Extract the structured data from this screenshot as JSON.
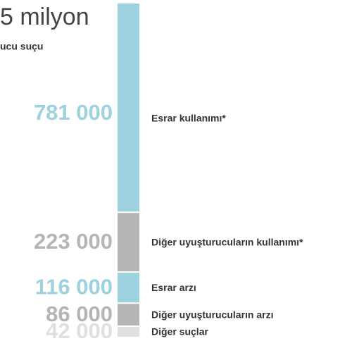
{
  "chart_data": {
    "type": "stacked_bar",
    "title": "5 milyon",
    "subtitle": "ucu suçu",
    "categories": [
      "Esrar kullanımı*",
      "Diğer uyuşturucuların kullanımı*",
      "Esrar arzı",
      "Diğer uyuşturucuların arzı",
      "Diğer suçlar"
    ],
    "values": [
      781000,
      223000,
      116000,
      86000,
      42000
    ],
    "value_labels": [
      "781 000",
      "223 000",
      "116 000",
      "86 000",
      "42 000"
    ],
    "colors": [
      "#9dd1de",
      "#b5b5b5",
      "#9dd1de",
      "#b5b5b5",
      "#e0e0e0"
    ]
  }
}
